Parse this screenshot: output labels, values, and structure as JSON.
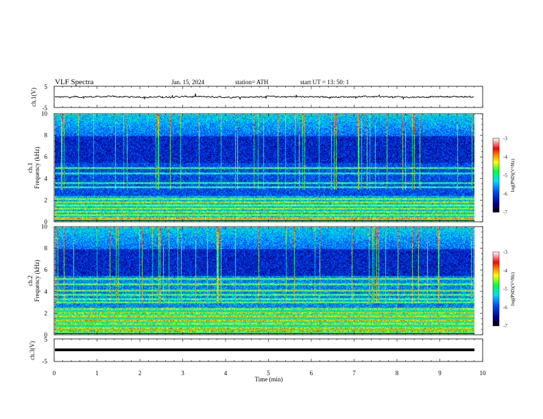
{
  "header": {
    "title": "VLF  Spectra",
    "date": "Jan. 15, 2024",
    "station": "station= ATH",
    "start": "start  UT  =    13: 50: 1"
  },
  "chart_data": [
    {
      "type": "line",
      "name": "ch.1 waveform",
      "ylabel": "ch.1(V)",
      "yticks": [
        "5",
        "-5"
      ],
      "ylim": [
        -5,
        5
      ],
      "xlim": [
        0,
        10
      ],
      "color": "#000000"
    },
    {
      "type": "heatmap",
      "name": "ch.1 spectrogram",
      "ylabel": "ch.1\nFrequency (kHz)",
      "ylabel_line1": "ch.1",
      "ylabel_line2": "Frequency  (kHz)",
      "yticks": [
        "0",
        "2",
        "4",
        "6",
        "8",
        "10"
      ],
      "ylim": [
        0,
        10
      ],
      "xlim": [
        0,
        10
      ],
      "data_end_min": 9.8,
      "colorbar": {
        "label": "log(PSD)(V²/Hz)",
        "ticks": [
          "-3",
          "-4",
          "-5",
          "-6",
          "-7"
        ],
        "range": [
          -7,
          -3
        ]
      },
      "bands_khz": [
        0.3,
        0.6,
        0.9,
        1.2,
        1.5,
        1.8,
        2.1,
        3.2,
        3.6,
        4.5,
        5.0
      ]
    },
    {
      "type": "heatmap",
      "name": "ch.2 spectrogram",
      "ylabel": "ch.2\nFrequency (kHz)",
      "ylabel_line1": "ch.2",
      "ylabel_line2": "Frequency  (kHz)",
      "yticks": [
        "0",
        "2",
        "4",
        "6",
        "8",
        "10"
      ],
      "ylim": [
        0,
        10
      ],
      "xlim": [
        0,
        10
      ],
      "data_end_min": 9.8,
      "colorbar": {
        "label": "log(PSD)(V²/Hz)",
        "ticks": [
          "-3",
          "-4",
          "-5",
          "-6",
          "-7"
        ],
        "range": [
          -7,
          -3
        ]
      },
      "bands_khz": [
        0.3,
        0.6,
        1.0,
        1.3,
        1.7,
        2.0,
        2.4,
        3.0,
        3.3,
        3.7,
        4.1,
        4.7,
        5.2
      ]
    },
    {
      "type": "line",
      "name": "ch.3 waveform",
      "ylabel": "ch.3(V)",
      "yticks": [
        "5",
        "-5"
      ],
      "ylim": [
        -5,
        5
      ],
      "xlim": [
        0,
        10
      ],
      "color": "#000000"
    }
  ],
  "xaxis": {
    "label": "Time  (min)",
    "ticks": [
      "0",
      "1",
      "2",
      "3",
      "4",
      "5",
      "6",
      "7",
      "8",
      "9",
      "10"
    ]
  },
  "colorbar_label": "log(PSD)(V²/Hz)"
}
